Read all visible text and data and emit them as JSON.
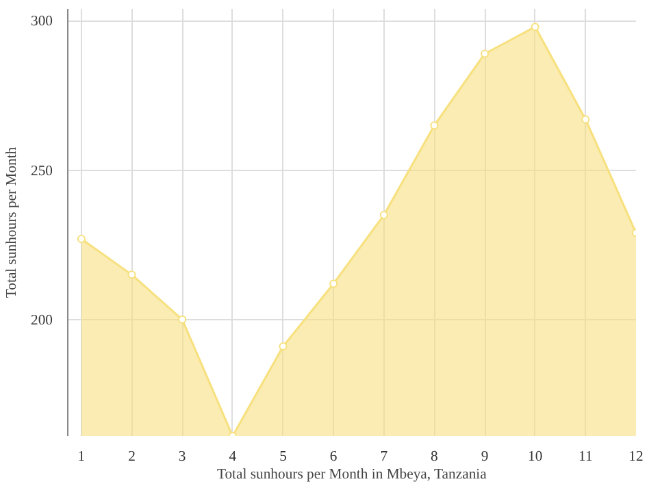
{
  "chart_data": {
    "type": "area",
    "xlabel": "Total sunhours per Month in Mbeya, Tanzania",
    "ylabel": "Total sunhours per Month",
    "x": [
      1,
      2,
      3,
      4,
      5,
      6,
      7,
      8,
      9,
      10,
      11,
      12
    ],
    "series": [
      {
        "color": "#f7e07e",
        "values": [
          227,
          215,
          200,
          161,
          191,
          212,
          235,
          265,
          289,
          298,
          267,
          229
        ]
      }
    ],
    "xlim": [
      0.73,
      12
    ],
    "xticks": [
      1,
      2,
      3,
      4,
      5,
      6,
      7,
      8,
      9,
      10,
      11,
      12
    ],
    "ylim": [
      161,
      304
    ],
    "yticks": [
      200,
      250,
      300
    ],
    "grid": true,
    "marker": "circle",
    "line_style": "solid"
  }
}
